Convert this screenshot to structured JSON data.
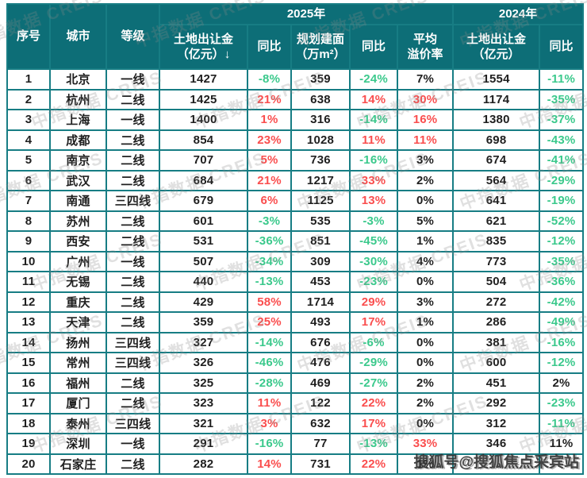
{
  "chart_data": {
    "type": "table",
    "row_headers": [
      "序号",
      "城市",
      "等级"
    ],
    "header_groups": [
      {
        "label": "2025年",
        "span": 5
      },
      {
        "label": "2024年",
        "span": 2
      }
    ],
    "sub_headers": [
      {
        "line1": "土地出让金",
        "line2": "（亿元）"
      },
      {
        "line1": "同比",
        "line2": ""
      },
      {
        "line1": "规划建面",
        "line2": "（万m²）"
      },
      {
        "line1": "同比",
        "line2": ""
      },
      {
        "line1": "平均",
        "line2": "溢价率"
      },
      {
        "line1": "土地出让金",
        "line2": "（亿元）"
      },
      {
        "line1": "同比",
        "line2": ""
      }
    ],
    "sort_icon": "↓",
    "columns": [
      "序号",
      "城市",
      "等级",
      "土地出让金（亿元）↓",
      "同比",
      "规划建面（万m²）",
      "同比",
      "平均溢价率",
      "土地出让金（亿元）",
      "同比"
    ],
    "rows": [
      [
        "1",
        "北京",
        "一线",
        "1427",
        {
          "v": "-8%",
          "c": "down"
        },
        "359",
        {
          "v": "-24%",
          "c": "down"
        },
        {
          "v": "7%",
          "c": "flat"
        },
        "1554",
        {
          "v": "-11%",
          "c": "down"
        }
      ],
      [
        "2",
        "杭州",
        "二线",
        "1425",
        {
          "v": "21%",
          "c": "up"
        },
        "638",
        {
          "v": "14%",
          "c": "up"
        },
        {
          "v": "30%",
          "c": "up"
        },
        "1174",
        {
          "v": "-35%",
          "c": "down"
        }
      ],
      [
        "3",
        "上海",
        "一线",
        "1400",
        {
          "v": "1%",
          "c": "up"
        },
        "316",
        {
          "v": "-14%",
          "c": "down"
        },
        {
          "v": "16%",
          "c": "up"
        },
        "1380",
        {
          "v": "-37%",
          "c": "down"
        }
      ],
      [
        "4",
        "成都",
        "二线",
        "854",
        {
          "v": "23%",
          "c": "up"
        },
        "1028",
        {
          "v": "11%",
          "c": "up"
        },
        {
          "v": "11%",
          "c": "up"
        },
        "698",
        {
          "v": "-43%",
          "c": "down"
        }
      ],
      [
        "5",
        "南京",
        "二线",
        "707",
        {
          "v": "5%",
          "c": "up"
        },
        "736",
        {
          "v": "-16%",
          "c": "down"
        },
        {
          "v": "3%",
          "c": "flat"
        },
        "674",
        {
          "v": "-41%",
          "c": "down"
        }
      ],
      [
        "6",
        "武汉",
        "二线",
        "684",
        {
          "v": "21%",
          "c": "up"
        },
        "1217",
        {
          "v": "33%",
          "c": "up"
        },
        {
          "v": "2%",
          "c": "flat"
        },
        "564",
        {
          "v": "-29%",
          "c": "down"
        }
      ],
      [
        "7",
        "南通",
        "三四线",
        "679",
        {
          "v": "6%",
          "c": "up"
        },
        "1125",
        {
          "v": "13%",
          "c": "up"
        },
        {
          "v": "0%",
          "c": "flat"
        },
        "641",
        {
          "v": "-19%",
          "c": "down"
        }
      ],
      [
        "8",
        "苏州",
        "二线",
        "601",
        {
          "v": "-3%",
          "c": "down"
        },
        "535",
        {
          "v": "-3%",
          "c": "down"
        },
        {
          "v": "5%",
          "c": "flat"
        },
        "621",
        {
          "v": "-52%",
          "c": "down"
        }
      ],
      [
        "9",
        "西安",
        "二线",
        "531",
        {
          "v": "-36%",
          "c": "down"
        },
        "851",
        {
          "v": "-45%",
          "c": "down"
        },
        {
          "v": "1%",
          "c": "flat"
        },
        "835",
        {
          "v": "-12%",
          "c": "down"
        }
      ],
      [
        "10",
        "广州",
        "一线",
        "507",
        {
          "v": "-34%",
          "c": "down"
        },
        "309",
        {
          "v": "-30%",
          "c": "down"
        },
        {
          "v": "4%",
          "c": "flat"
        },
        "773",
        {
          "v": "-35%",
          "c": "down"
        }
      ],
      [
        "11",
        "无锡",
        "二线",
        "440",
        {
          "v": "-13%",
          "c": "down"
        },
        "453",
        {
          "v": "-23%",
          "c": "down"
        },
        {
          "v": "0%",
          "c": "flat"
        },
        "504",
        {
          "v": "-36%",
          "c": "down"
        }
      ],
      [
        "12",
        "重庆",
        "二线",
        "429",
        {
          "v": "58%",
          "c": "up"
        },
        "1714",
        {
          "v": "29%",
          "c": "up"
        },
        {
          "v": "3%",
          "c": "flat"
        },
        "272",
        {
          "v": "-42%",
          "c": "down"
        }
      ],
      [
        "13",
        "天津",
        "二线",
        "359",
        {
          "v": "25%",
          "c": "up"
        },
        "493",
        {
          "v": "17%",
          "c": "up"
        },
        {
          "v": "1%",
          "c": "flat"
        },
        "286",
        {
          "v": "-49%",
          "c": "down"
        }
      ],
      [
        "14",
        "扬州",
        "三四线",
        "327",
        {
          "v": "-14%",
          "c": "down"
        },
        "676",
        {
          "v": "-6%",
          "c": "down"
        },
        {
          "v": "0%",
          "c": "flat"
        },
        "381",
        {
          "v": "-16%",
          "c": "down"
        }
      ],
      [
        "15",
        "常州",
        "三四线",
        "326",
        {
          "v": "-46%",
          "c": "down"
        },
        "476",
        {
          "v": "-29%",
          "c": "down"
        },
        {
          "v": "0%",
          "c": "flat"
        },
        "600",
        {
          "v": "-12%",
          "c": "down"
        }
      ],
      [
        "16",
        "福州",
        "二线",
        "325",
        {
          "v": "-28%",
          "c": "down"
        },
        "469",
        {
          "v": "-27%",
          "c": "down"
        },
        {
          "v": "2%",
          "c": "flat"
        },
        "451",
        {
          "v": "2%",
          "c": "flat"
        }
      ],
      [
        "17",
        "厦门",
        "二线",
        "323",
        {
          "v": "11%",
          "c": "up"
        },
        "122",
        {
          "v": "22%",
          "c": "up"
        },
        {
          "v": "2%",
          "c": "flat"
        },
        "292",
        {
          "v": "-23%",
          "c": "down"
        }
      ],
      [
        "18",
        "泰州",
        "三四线",
        "321",
        {
          "v": "3%",
          "c": "up"
        },
        "632",
        {
          "v": "17%",
          "c": "up"
        },
        {
          "v": "0%",
          "c": "flat"
        },
        "312",
        {
          "v": "-11%",
          "c": "down"
        }
      ],
      [
        "19",
        "深圳",
        "一线",
        "291",
        {
          "v": "-16%",
          "c": "down"
        },
        "77",
        {
          "v": "-13%",
          "c": "down"
        },
        {
          "v": "33%",
          "c": "up"
        },
        "346",
        {
          "v": "11%",
          "c": "flat"
        }
      ],
      [
        "20",
        "石家庄",
        "二线",
        "282",
        {
          "v": "14%",
          "c": "up"
        },
        "731",
        {
          "v": "22%",
          "c": "up"
        },
        {
          "v": "1%",
          "c": "flat"
        },
        "",
        {
          "v": "",
          "c": "flat"
        }
      ]
    ]
  },
  "watermarks": {
    "tile_text": "中指数据 CREIS",
    "corner_text": "搜狐号@搜狐焦点采宾站"
  },
  "colors": {
    "header_teal": "#0d6e77",
    "border_teal": "#177d84",
    "up_red": "#fa4e4e",
    "down_green": "#3bc98c"
  }
}
